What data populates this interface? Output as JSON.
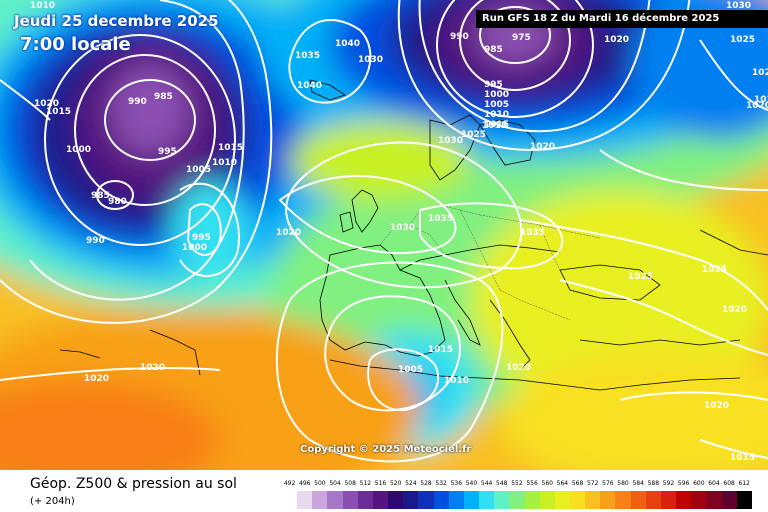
{
  "header": {
    "date_line": "Jeudi 25 decembre 2025",
    "time_line": "7:00 locale"
  },
  "run_info": "Run GFS 18 Z du Mardi 16 décembre 2025",
  "copyright": "Copyright © 2025 Meteociel.fr",
  "footer": {
    "field_title": "Géop. Z500 & pression au sol",
    "lead_time": "(+ 204h)"
  },
  "scale": {
    "labels": [
      "492",
      "496",
      "500",
      "504",
      "508",
      "512",
      "516",
      "520",
      "524",
      "528",
      "532",
      "536",
      "540",
      "544",
      "548",
      "552",
      "556",
      "560",
      "564",
      "568",
      "572",
      "576",
      "580",
      "584",
      "588",
      "592",
      "596",
      "600",
      "604",
      "608",
      "612"
    ],
    "colors": [
      "#ffffff",
      "#e8d8f0",
      "#c9a6de",
      "#a878c8",
      "#8a4fb0",
      "#6c2d96",
      "#54157e",
      "#2e0a6e",
      "#1a1a8a",
      "#1030b8",
      "#0050e0",
      "#0080f0",
      "#00b0f8",
      "#30e0f0",
      "#60f0c8",
      "#80f080",
      "#a8f040",
      "#c8f020",
      "#e8f020",
      "#f8e020",
      "#f8c020",
      "#f8a018",
      "#f88018",
      "#f06010",
      "#e84010",
      "#d82010",
      "#c00000",
      "#a00010",
      "#800020",
      "#600030",
      "#000000"
    ]
  },
  "isobars": [
    {
      "label": "1010",
      "pos": "a"
    },
    {
      "label": "1030",
      "pos": "b"
    },
    {
      "label": "1020",
      "pos": "c"
    },
    {
      "label": "1015",
      "pos": "d"
    },
    {
      "label": "990",
      "pos": "e"
    },
    {
      "label": "985",
      "pos": "f"
    },
    {
      "label": "1000",
      "pos": "g"
    },
    {
      "label": "995",
      "pos": "h"
    },
    {
      "label": "985",
      "pos": "i"
    },
    {
      "label": "980",
      "pos": "j"
    },
    {
      "label": "990",
      "pos": "k"
    },
    {
      "label": "1005",
      "pos": "l"
    },
    {
      "label": "1010",
      "pos": "m"
    },
    {
      "label": "1015",
      "pos": "n"
    },
    {
      "label": "995",
      "pos": "o"
    },
    {
      "label": "1000",
      "pos": "p"
    },
    {
      "label": "1035",
      "pos": "q"
    },
    {
      "label": "1040",
      "pos": "r"
    },
    {
      "label": "1040",
      "pos": "s"
    },
    {
      "label": "1030",
      "pos": "t"
    },
    {
      "label": "990",
      "pos": "u"
    },
    {
      "label": "985",
      "pos": "v"
    },
    {
      "label": "975",
      "pos": "w"
    },
    {
      "label": "1020",
      "pos": "x"
    },
    {
      "label": "1025",
      "pos": "y"
    },
    {
      "label": "995",
      "pos": "z"
    },
    {
      "label": "1000",
      "pos": "aa"
    },
    {
      "label": "1005",
      "pos": "ab"
    },
    {
      "label": "1010",
      "pos": "ac"
    },
    {
      "label": "1015",
      "pos": "ad"
    },
    {
      "label": "1030",
      "pos": "ae"
    },
    {
      "label": "1025",
      "pos": "af"
    },
    {
      "label": "1020",
      "pos": "ag"
    },
    {
      "label": "1035",
      "pos": "ah"
    },
    {
      "label": "1030",
      "pos": "ai"
    },
    {
      "label": "1035",
      "pos": "aj"
    },
    {
      "label": "1020",
      "pos": "ak"
    },
    {
      "label": "1025",
      "pos": "al"
    },
    {
      "label": "1025",
      "pos": "am"
    },
    {
      "label": "1020",
      "pos": "an"
    },
    {
      "label": "1015",
      "pos": "ao"
    },
    {
      "label": "1005",
      "pos": "ap"
    },
    {
      "label": "1010",
      "pos": "aq"
    },
    {
      "label": "1020",
      "pos": "ar"
    },
    {
      "label": "1020",
      "pos": "as"
    },
    {
      "label": "1020",
      "pos": "at"
    },
    {
      "label": "1020",
      "pos": "au"
    },
    {
      "label": "1015",
      "pos": "av"
    },
    {
      "label": "1025",
      "pos": "aw"
    },
    {
      "label": "1020",
      "pos": "ax"
    },
    {
      "label": "1015",
      "pos": "ay"
    },
    {
      "label": "1015",
      "pos": "az"
    }
  ]
}
